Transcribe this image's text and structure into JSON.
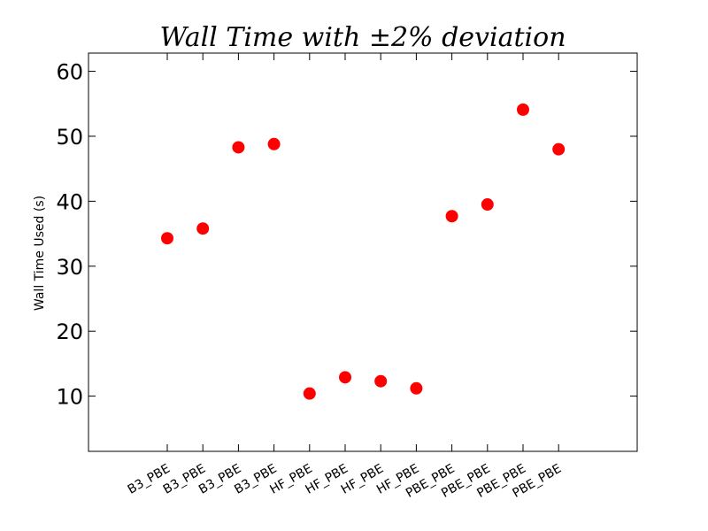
{
  "chart_data": {
    "type": "scatter",
    "title": "Wall Time with ±2% deviation",
    "xlabel": "",
    "ylabel": "Wall Time Used (s)",
    "categories": [
      "B3_PBE",
      "B3_PBE",
      "B3_PBE",
      "B3_PBE",
      "HF_PBE",
      "HF_PBE",
      "HF_PBE",
      "HF_PBE",
      "PBE_PBE",
      "PBE_PBE",
      "PBE_PBE",
      "PBE_PBE"
    ],
    "values": [
      34.3,
      35.8,
      48.3,
      48.8,
      10.4,
      12.9,
      12.3,
      11.2,
      37.7,
      39.5,
      54.1,
      48.0
    ],
    "ylim": [
      1.5,
      62.8
    ],
    "yticks": [
      10,
      20,
      30,
      40,
      50,
      60
    ],
    "marker_color": "#ff0000",
    "grid": false
  }
}
